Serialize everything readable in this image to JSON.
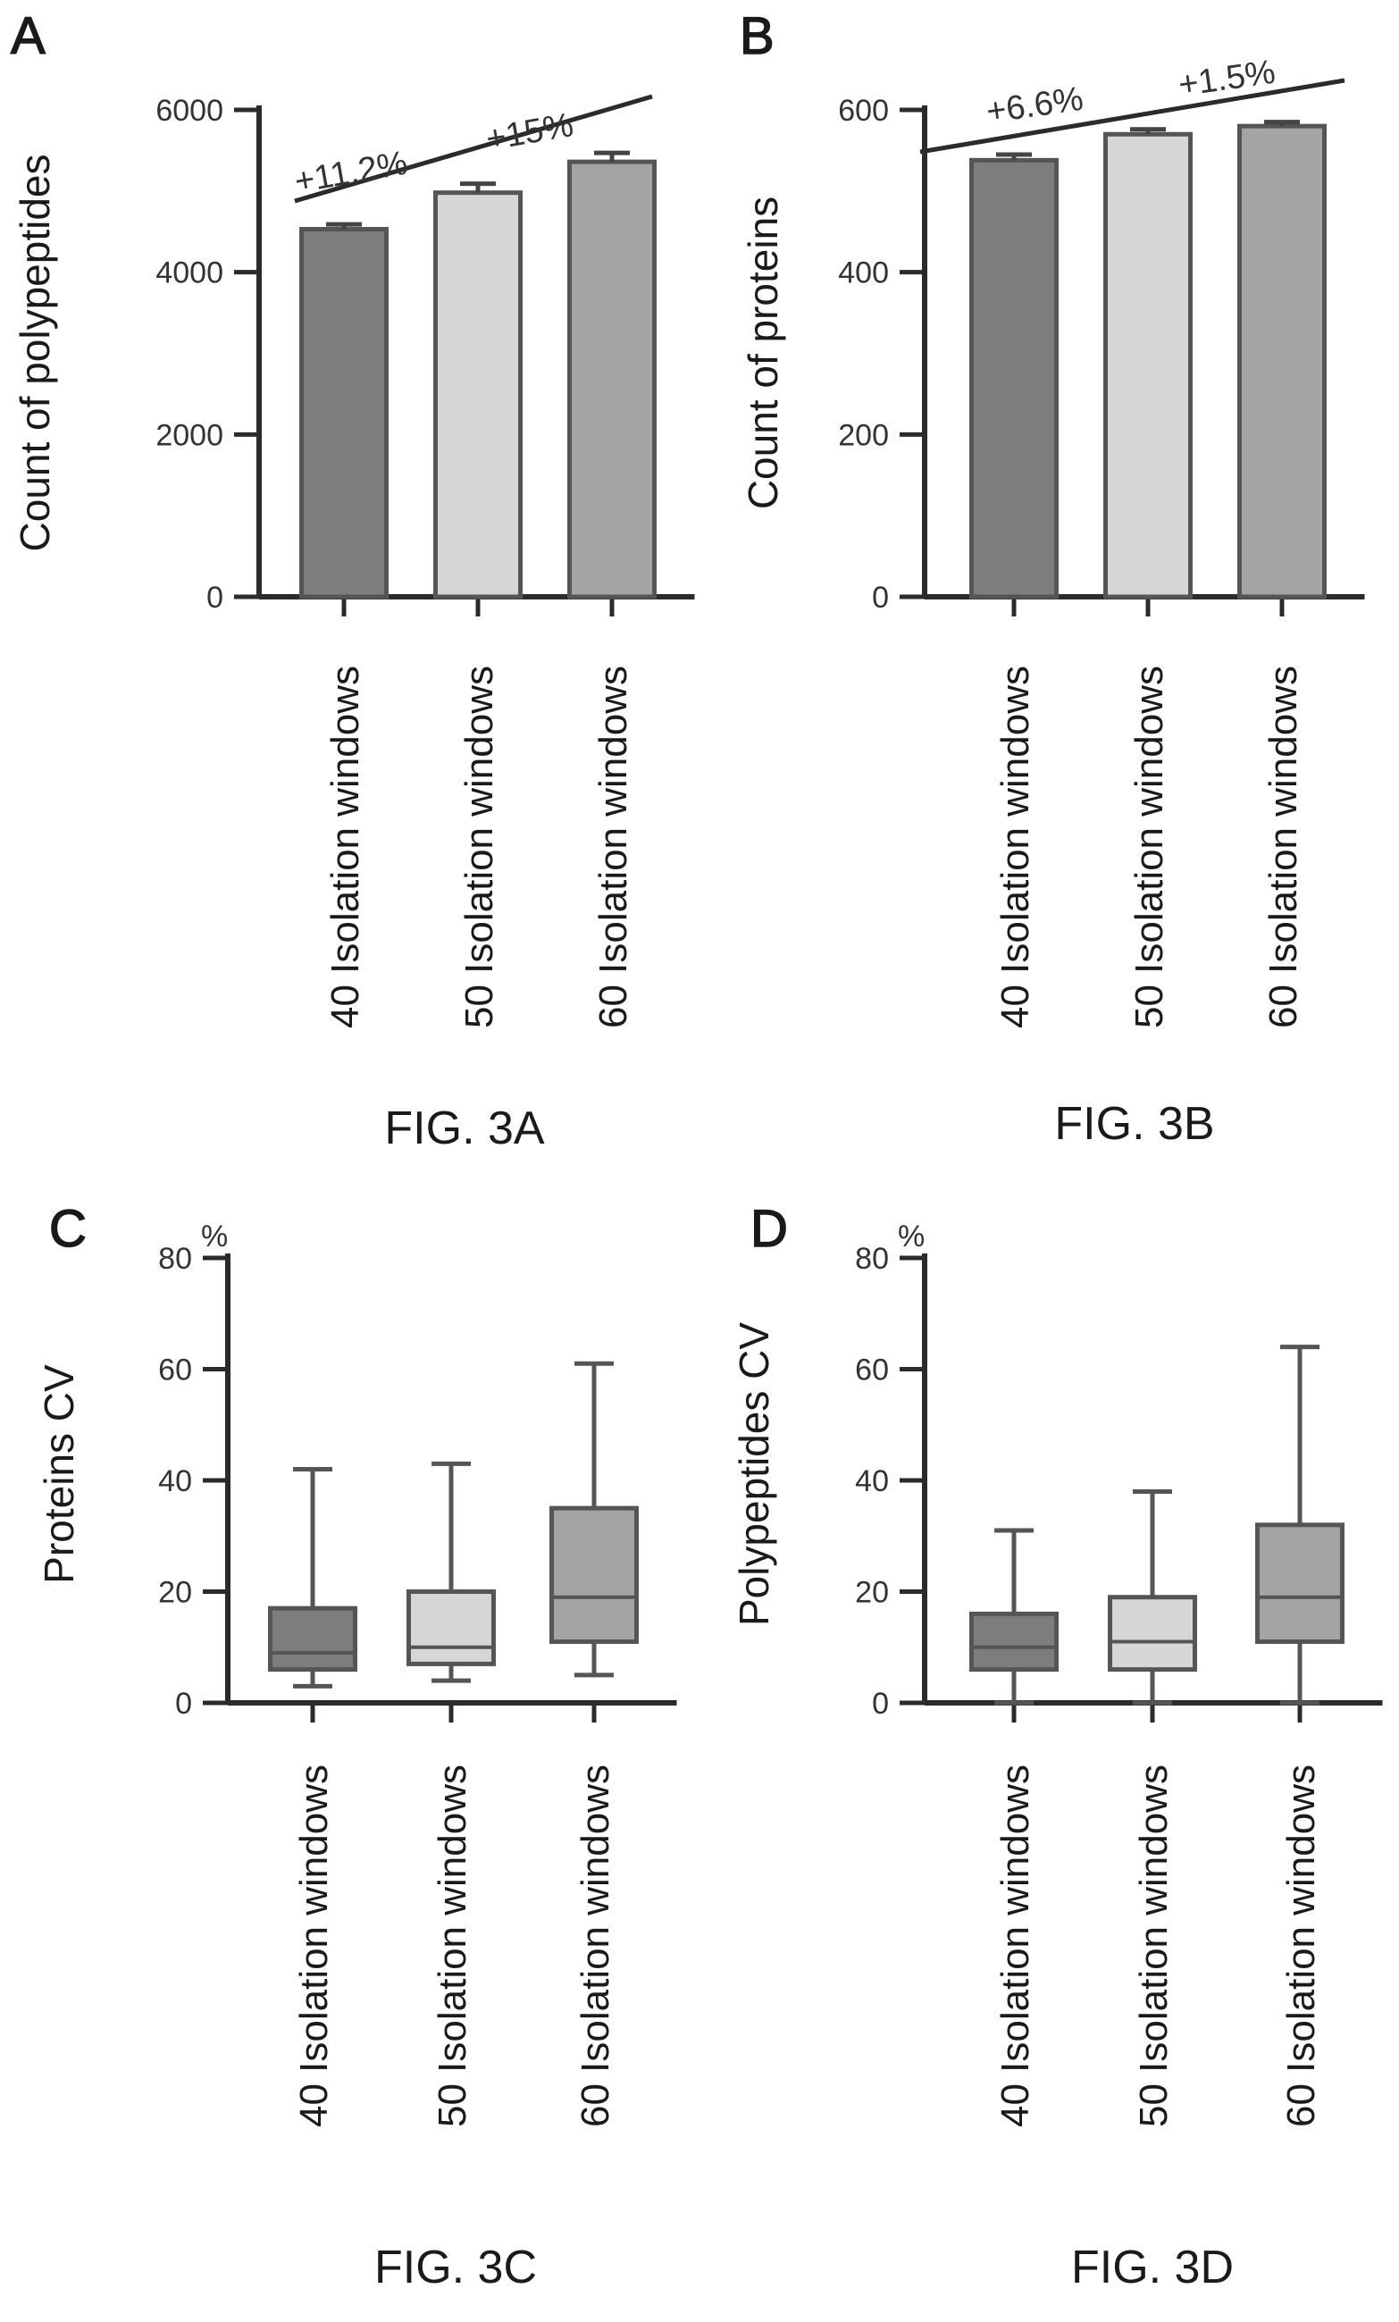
{
  "colors": {
    "fill_40": "#7d7d7d",
    "fill_50": "#d6d6d6",
    "fill_60": "#a4a4a4",
    "edge": "#555555",
    "axis": "#2b2b2b"
  },
  "chart_data": [
    {
      "panel": "A",
      "type": "bar",
      "caption": "FIG. 3A",
      "ylabel": "Count of polypeptides",
      "categories": [
        "40 Isolation windows",
        "50 Isolation windows",
        "60 Isolation windows"
      ],
      "values": [
        4530,
        4980,
        5360
      ],
      "errors": [
        60,
        110,
        110
      ],
      "ylim": [
        0,
        6000
      ],
      "yticks": [
        "0",
        "2000",
        "4000",
        "6000"
      ],
      "annotations": [
        "+11.2%",
        "+15%"
      ],
      "grid": false
    },
    {
      "panel": "B",
      "type": "bar",
      "caption": "FIG. 3B",
      "ylabel": "Count of proteins",
      "categories": [
        "40 Isolation windows",
        "50 Isolation windows",
        "60 Isolation windows"
      ],
      "values": [
        538,
        570,
        580
      ],
      "errors": [
        7,
        6,
        5
      ],
      "ylim": [
        0,
        600
      ],
      "yticks": [
        "0",
        "200",
        "400",
        "600"
      ],
      "annotations": [
        "+6.6%",
        "+1.5%"
      ],
      "grid": false
    },
    {
      "panel": "C",
      "type": "box",
      "caption": "FIG. 3C",
      "ylabel": "Proteins CV",
      "unit": "%",
      "categories": [
        "40 Isolation windows",
        "50 Isolation windows",
        "60 Isolation windows"
      ],
      "boxes": [
        {
          "min": 3,
          "q1": 6,
          "median": 9,
          "q3": 17,
          "max": 42
        },
        {
          "min": 4,
          "q1": 7,
          "median": 10,
          "q3": 20,
          "max": 43
        },
        {
          "min": 5,
          "q1": 11,
          "median": 19,
          "q3": 35,
          "max": 61
        }
      ],
      "ylim": [
        0,
        80
      ],
      "yticks": [
        "0",
        "20",
        "40",
        "60",
        "80"
      ],
      "grid": false
    },
    {
      "panel": "D",
      "type": "box",
      "caption": "FIG. 3D",
      "ylabel": "Polypeptides CV",
      "unit": "%",
      "categories": [
        "40 Isolation windows",
        "50 Isolation windows",
        "60 Isolation windows"
      ],
      "boxes": [
        {
          "min": 0,
          "q1": 6,
          "median": 10,
          "q3": 16,
          "max": 31
        },
        {
          "min": 0,
          "q1": 6,
          "median": 11,
          "q3": 19,
          "max": 38
        },
        {
          "min": 0,
          "q1": 11,
          "median": 19,
          "q3": 32,
          "max": 64
        }
      ],
      "ylim": [
        0,
        80
      ],
      "yticks": [
        "0",
        "20",
        "40",
        "60",
        "80"
      ],
      "grid": false
    }
  ]
}
